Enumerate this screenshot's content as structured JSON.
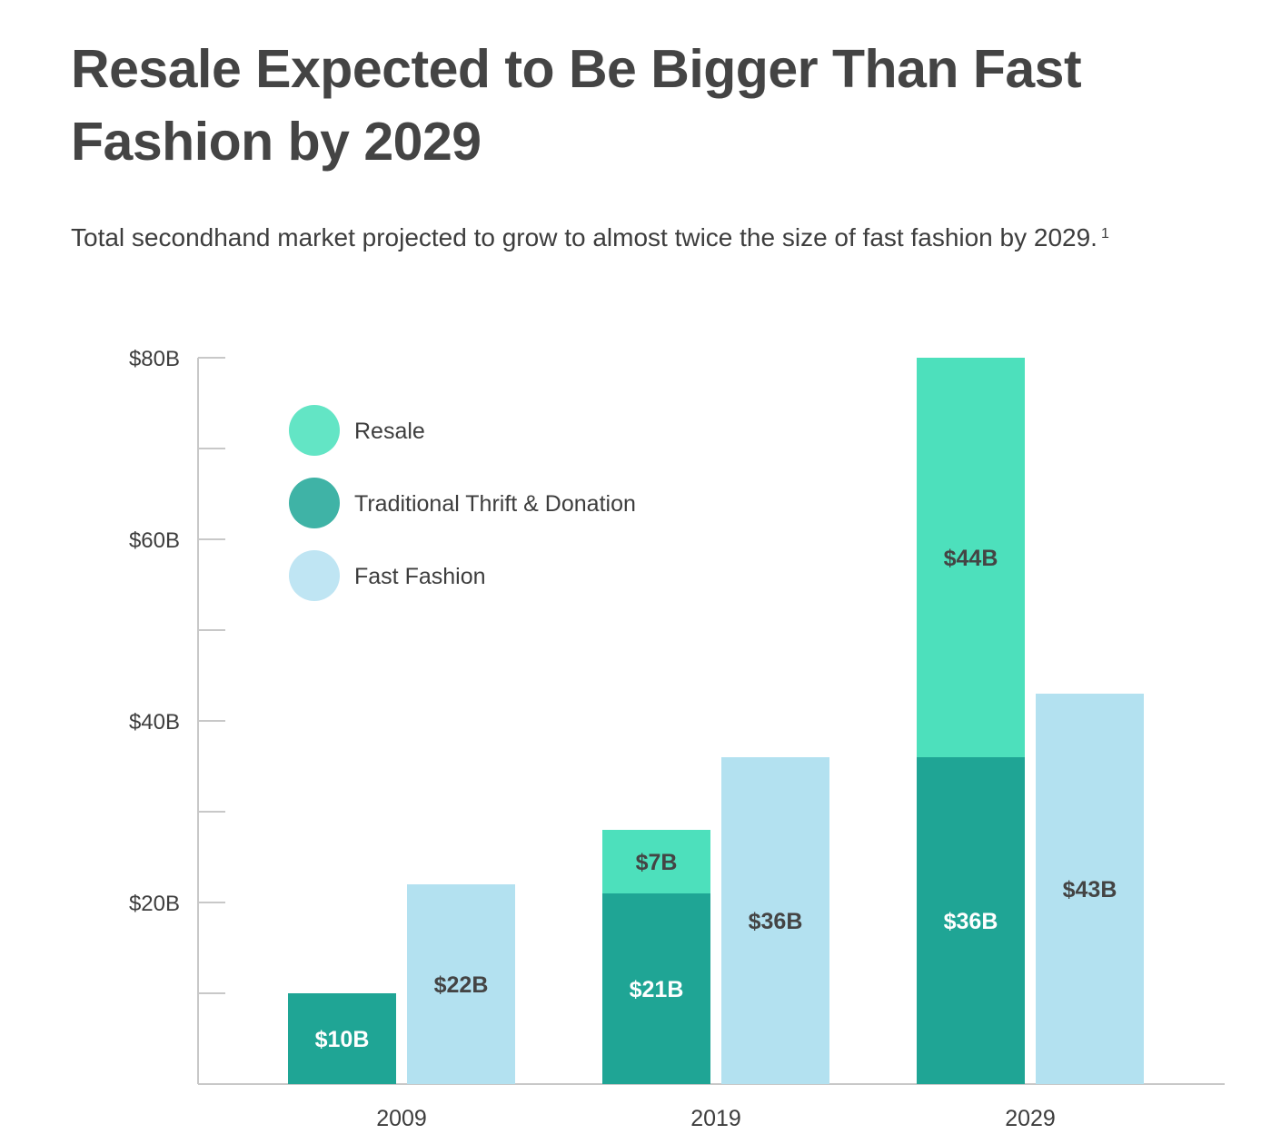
{
  "title": "Resale Expected to Be Bigger Than Fast Fashion by 2029",
  "subtitle": "Total secondhand market projected to grow to almost twice the size of fast fashion by 2029.",
  "footnote_marker": "1",
  "chart_data": {
    "type": "bar",
    "categories": [
      "2009",
      "2019",
      "2029"
    ],
    "ylim": [
      0,
      80
    ],
    "y_ticks": [
      20,
      40,
      60,
      80
    ],
    "y_minor_ticks": [
      10,
      30,
      50,
      70
    ],
    "y_tick_labels": [
      "$20B",
      "$40B",
      "$60B",
      "$80B"
    ],
    "xlabel": "",
    "ylabel": "",
    "grid": false,
    "legend_position": "top-left",
    "stacked_series": [
      {
        "name": "Traditional Thrift & Donation",
        "values": [
          10,
          21,
          36
        ],
        "labels": [
          "$10B",
          "$21B",
          "$36B"
        ],
        "color": "#1fa595",
        "label_color": "#ffffff"
      },
      {
        "name": "Resale",
        "values": [
          0,
          7,
          44
        ],
        "labels": [
          "",
          "$7B",
          "$44B"
        ],
        "color": "#4de0bc",
        "label_color": "#444444"
      }
    ],
    "side_series": {
      "name": "Fast Fashion",
      "values": [
        22,
        36,
        43
      ],
      "labels": [
        "$22B",
        "$36B",
        "$43B"
      ],
      "color": "#b3e1f0",
      "label_color": "#444444"
    },
    "legend": [
      {
        "name": "Resale",
        "color": "#63e5c5"
      },
      {
        "name": "Traditional Thrift & Donation",
        "color": "#3fb3a6"
      },
      {
        "name": "Fast Fashion",
        "color": "#bfe5f3"
      }
    ]
  }
}
